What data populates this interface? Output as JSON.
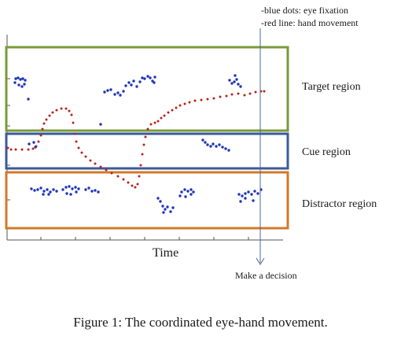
{
  "legend": {
    "line1": "-blue dots: eye fixation",
    "line2": "-red line: hand movement"
  },
  "regions": [
    {
      "id": "target",
      "label": "Target region",
      "color": "#7a9a3a"
    },
    {
      "id": "cue",
      "label": "Cue region",
      "color": "#3a5a9a"
    },
    {
      "id": "distractor",
      "label": "Distractor region",
      "color": "#d27a2a"
    }
  ],
  "axis": {
    "title": "Time"
  },
  "decision_label": "Make a decision",
  "caption": "Figure 1: The coordinated eye-hand movement.",
  "colors": {
    "eye_fixation": "#1f35b8",
    "hand_movement": "#b8231a",
    "axis": "#555555",
    "decision_line": "#4a6a9a"
  }
}
